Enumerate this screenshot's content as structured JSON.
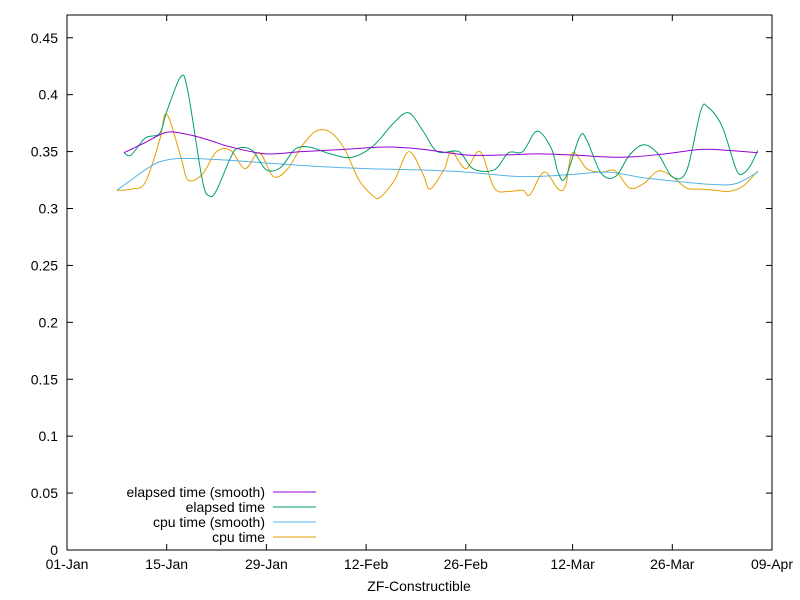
{
  "chart_data": {
    "type": "line",
    "title": "",
    "xlabel": "ZF-Constructible",
    "ylabel": "",
    "xlim": [
      "2000-01-01",
      "2000-04-09"
    ],
    "ylim": [
      0,
      0.47
    ],
    "x_ticks": [
      {
        "date": "2000-01-01",
        "label": "01-Jan"
      },
      {
        "date": "2000-01-15",
        "label": "15-Jan"
      },
      {
        "date": "2000-01-29",
        "label": "29-Jan"
      },
      {
        "date": "2000-02-12",
        "label": "12-Feb"
      },
      {
        "date": "2000-02-26",
        "label": "26-Feb"
      },
      {
        "date": "2000-03-12",
        "label": "12-Mar"
      },
      {
        "date": "2000-03-26",
        "label": "26-Mar"
      },
      {
        "date": "2000-04-09",
        "label": "09-Apr"
      }
    ],
    "y_ticks": [
      {
        "value": 0,
        "label": "0"
      },
      {
        "value": 0.05,
        "label": "0.05"
      },
      {
        "value": 0.1,
        "label": "0.1"
      },
      {
        "value": 0.15,
        "label": "0.15"
      },
      {
        "value": 0.2,
        "label": "0.2"
      },
      {
        "value": 0.25,
        "label": "0.25"
      },
      {
        "value": 0.3,
        "label": "0.3"
      },
      {
        "value": 0.35,
        "label": "0.35"
      },
      {
        "value": 0.4,
        "label": "0.4"
      },
      {
        "value": 0.45,
        "label": "0.45"
      }
    ],
    "grid": false,
    "legend_position": "bottom-left",
    "series": [
      {
        "name": "elapsed time (smooth)",
        "color": "#9400d3",
        "points": [
          [
            "2000-01-09",
            0.349
          ],
          [
            "2000-01-12",
            0.358
          ],
          [
            "2000-01-15",
            0.367
          ],
          [
            "2000-01-18",
            0.365
          ],
          [
            "2000-01-21",
            0.36
          ],
          [
            "2000-01-24",
            0.354
          ],
          [
            "2000-01-29",
            0.348
          ],
          [
            "2000-02-03",
            0.35
          ],
          [
            "2000-02-09",
            0.352
          ],
          [
            "2000-02-15",
            0.354
          ],
          [
            "2000-02-20",
            0.352
          ],
          [
            "2000-02-26",
            0.347
          ],
          [
            "2000-03-02",
            0.347
          ],
          [
            "2000-03-07",
            0.348
          ],
          [
            "2000-03-12",
            0.347
          ],
          [
            "2000-03-19",
            0.345
          ],
          [
            "2000-03-25",
            0.348
          ],
          [
            "2000-03-30",
            0.352
          ],
          [
            "2000-04-03",
            0.351
          ],
          [
            "2000-04-07",
            0.349
          ]
        ]
      },
      {
        "name": "elapsed time",
        "color": "#009e73",
        "points": [
          [
            "2000-01-09",
            0.349
          ],
          [
            "2000-01-10",
            0.347
          ],
          [
            "2000-01-12",
            0.362
          ],
          [
            "2000-01-14",
            0.366
          ],
          [
            "2000-01-15",
            0.385
          ],
          [
            "2000-01-17",
            0.416
          ],
          [
            "2000-01-18",
            0.402
          ],
          [
            "2000-01-20",
            0.325
          ],
          [
            "2000-01-21",
            0.311
          ],
          [
            "2000-01-22",
            0.316
          ],
          [
            "2000-01-24",
            0.345
          ],
          [
            "2000-01-25",
            0.353
          ],
          [
            "2000-01-27",
            0.351
          ],
          [
            "2000-01-29",
            0.334
          ],
          [
            "2000-01-31",
            0.336
          ],
          [
            "2000-02-02",
            0.352
          ],
          [
            "2000-02-04",
            0.354
          ],
          [
            "2000-02-07",
            0.348
          ],
          [
            "2000-02-10",
            0.345
          ],
          [
            "2000-02-13",
            0.355
          ],
          [
            "2000-02-16",
            0.376
          ],
          [
            "2000-02-18",
            0.384
          ],
          [
            "2000-02-20",
            0.368
          ],
          [
            "2000-02-22",
            0.35
          ],
          [
            "2000-02-25",
            0.35
          ],
          [
            "2000-02-27",
            0.335
          ],
          [
            "2000-03-01",
            0.334
          ],
          [
            "2000-03-03",
            0.349
          ],
          [
            "2000-03-05",
            0.35
          ],
          [
            "2000-03-07",
            0.368
          ],
          [
            "2000-03-09",
            0.353
          ],
          [
            "2000-03-10",
            0.331
          ],
          [
            "2000-03-11",
            0.327
          ],
          [
            "2000-03-13",
            0.363
          ],
          [
            "2000-03-14",
            0.36
          ],
          [
            "2000-03-16",
            0.331
          ],
          [
            "2000-03-18",
            0.328
          ],
          [
            "2000-03-20",
            0.347
          ],
          [
            "2000-03-22",
            0.356
          ],
          [
            "2000-03-24",
            0.348
          ],
          [
            "2000-03-26",
            0.328
          ],
          [
            "2000-03-28",
            0.333
          ],
          [
            "2000-03-30",
            0.386
          ],
          [
            "2000-03-31",
            0.389
          ],
          [
            "2000-04-02",
            0.372
          ],
          [
            "2000-04-04",
            0.334
          ],
          [
            "2000-04-05",
            0.331
          ],
          [
            "2000-04-06",
            0.338
          ],
          [
            "2000-04-07",
            0.351
          ]
        ]
      },
      {
        "name": "cpu time (smooth)",
        "color": "#56b4e9",
        "points": [
          [
            "2000-01-08",
            0.316
          ],
          [
            "2000-01-10",
            0.325
          ],
          [
            "2000-01-12",
            0.334
          ],
          [
            "2000-01-14",
            0.341
          ],
          [
            "2000-01-17",
            0.344
          ],
          [
            "2000-01-22",
            0.343
          ],
          [
            "2000-01-29",
            0.34
          ],
          [
            "2000-02-05",
            0.337
          ],
          [
            "2000-02-12",
            0.335
          ],
          [
            "2000-02-19",
            0.334
          ],
          [
            "2000-02-26",
            0.332
          ],
          [
            "2000-03-05",
            0.328
          ],
          [
            "2000-03-12",
            0.33
          ],
          [
            "2000-03-17",
            0.332
          ],
          [
            "2000-03-22",
            0.327
          ],
          [
            "2000-03-28",
            0.323
          ],
          [
            "2000-04-01",
            0.321
          ],
          [
            "2000-04-04",
            0.322
          ],
          [
            "2000-04-07",
            0.332
          ]
        ]
      },
      {
        "name": "cpu time",
        "color": "#e69f00",
        "points": [
          [
            "2000-01-08",
            0.316
          ],
          [
            "2000-01-10",
            0.317
          ],
          [
            "2000-01-12",
            0.323
          ],
          [
            "2000-01-14",
            0.36
          ],
          [
            "2000-01-15",
            0.383
          ],
          [
            "2000-01-17",
            0.345
          ],
          [
            "2000-01-18",
            0.325
          ],
          [
            "2000-01-20",
            0.33
          ],
          [
            "2000-01-22",
            0.35
          ],
          [
            "2000-01-24",
            0.351
          ],
          [
            "2000-01-26",
            0.335
          ],
          [
            "2000-01-28",
            0.349
          ],
          [
            "2000-01-30",
            0.328
          ],
          [
            "2000-02-01",
            0.335
          ],
          [
            "2000-02-03",
            0.355
          ],
          [
            "2000-02-05",
            0.368
          ],
          [
            "2000-02-07",
            0.367
          ],
          [
            "2000-02-09",
            0.352
          ],
          [
            "2000-02-11",
            0.325
          ],
          [
            "2000-02-13",
            0.311
          ],
          [
            "2000-02-14",
            0.31
          ],
          [
            "2000-02-16",
            0.325
          ],
          [
            "2000-02-18",
            0.35
          ],
          [
            "2000-02-20",
            0.33
          ],
          [
            "2000-02-21",
            0.317
          ],
          [
            "2000-02-23",
            0.335
          ],
          [
            "2000-02-24",
            0.35
          ],
          [
            "2000-02-26",
            0.335
          ],
          [
            "2000-02-28",
            0.35
          ],
          [
            "2000-03-01",
            0.318
          ],
          [
            "2000-03-03",
            0.315
          ],
          [
            "2000-03-05",
            0.316
          ],
          [
            "2000-03-06",
            0.312
          ],
          [
            "2000-03-08",
            0.332
          ],
          [
            "2000-03-10",
            0.317
          ],
          [
            "2000-03-11",
            0.32
          ],
          [
            "2000-03-12",
            0.349
          ],
          [
            "2000-03-14",
            0.335
          ],
          [
            "2000-03-16",
            0.332
          ],
          [
            "2000-03-18",
            0.333
          ],
          [
            "2000-03-20",
            0.318
          ],
          [
            "2000-03-22",
            0.322
          ],
          [
            "2000-03-24",
            0.333
          ],
          [
            "2000-03-26",
            0.328
          ],
          [
            "2000-03-28",
            0.318
          ],
          [
            "2000-03-30",
            0.317
          ],
          [
            "2000-04-01",
            0.316
          ],
          [
            "2000-04-03",
            0.315
          ],
          [
            "2000-04-05",
            0.32
          ],
          [
            "2000-04-07",
            0.333
          ]
        ]
      }
    ]
  }
}
